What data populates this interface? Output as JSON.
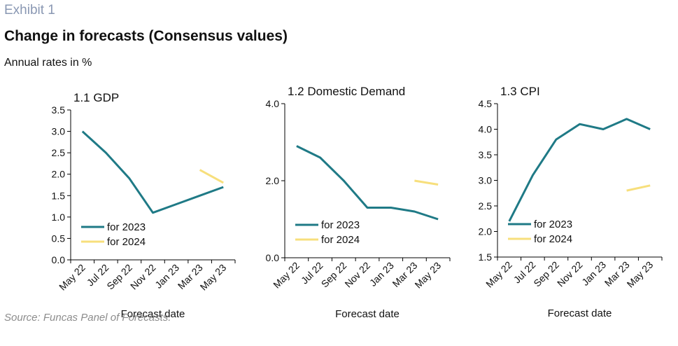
{
  "header": {
    "exhibit": "Exhibit 1",
    "title": "Change in forecasts (Consensus values)",
    "subtitle": "Annual rates in %"
  },
  "footer": {
    "source": "Source: Funcas Panel of Forecasts."
  },
  "colors": {
    "series_2023": "#1f7a86",
    "series_2024": "#f7df7c",
    "axis": "#000000"
  },
  "chart_data": [
    {
      "type": "line",
      "title": "1.1 GDP",
      "xlabel": "Forecast date",
      "ylabel": "",
      "x": [
        "May 22",
        "Jul 22",
        "Sep 22",
        "Nov 22",
        "Jan 23",
        "Mar 23",
        "May 23"
      ],
      "ylim": [
        0,
        3.5
      ],
      "yticks": [
        "0.0",
        "0.5",
        "1.0",
        "1.5",
        "2.0",
        "2.5",
        "3.0",
        "3.5"
      ],
      "series": [
        {
          "name": "for 2023",
          "color": "#1f7a86",
          "values": [
            3.0,
            2.5,
            1.9,
            1.1,
            1.3,
            1.5,
            1.7
          ]
        },
        {
          "name": "for 2024",
          "color": "#f7df7c",
          "values": [
            null,
            null,
            null,
            null,
            null,
            2.1,
            1.8
          ]
        }
      ],
      "legend": "lower-left"
    },
    {
      "type": "line",
      "title": "1.2 Domestic Demand",
      "xlabel": "Forecast date",
      "ylabel": "",
      "x": [
        "May 22",
        "Jul 22",
        "Sep 22",
        "Nov 22",
        "Jan 23",
        "Mar 23",
        "May 23"
      ],
      "ylim": [
        0,
        4
      ],
      "yticks": [
        "0.0",
        "2.0",
        "4.0"
      ],
      "series": [
        {
          "name": "for 2023",
          "color": "#1f7a86",
          "values": [
            2.9,
            2.6,
            2.0,
            1.3,
            1.3,
            1.2,
            1.0
          ]
        },
        {
          "name": "for 2024",
          "color": "#f7df7c",
          "values": [
            null,
            null,
            null,
            null,
            null,
            2.0,
            1.9
          ]
        }
      ],
      "legend": "lower-left"
    },
    {
      "type": "line",
      "title": "1.3 CPI",
      "xlabel": "Forecast date",
      "ylabel": "",
      "x": [
        "May 22",
        "Jul 22",
        "Sep 22",
        "Nov 22",
        "Jan 23",
        "Mar 23",
        "May 23"
      ],
      "ylim": [
        1.5,
        4.5
      ],
      "yticks": [
        "1.5",
        "2.0",
        "2.5",
        "3.0",
        "3.5",
        "4.0",
        "4.5"
      ],
      "series": [
        {
          "name": "for 2023",
          "color": "#1f7a86",
          "values": [
            2.2,
            3.1,
            3.8,
            4.1,
            4.0,
            4.2,
            4.0
          ]
        },
        {
          "name": "for 2024",
          "color": "#f7df7c",
          "values": [
            null,
            null,
            null,
            null,
            null,
            2.8,
            2.9
          ]
        }
      ],
      "legend": "lower-left"
    }
  ]
}
